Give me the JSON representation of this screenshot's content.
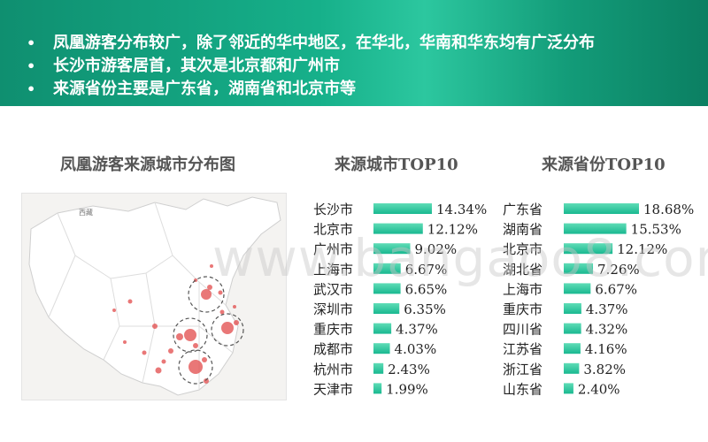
{
  "banner": {
    "bullets": [
      "凤凰游客分布较广，除了邻近的华中地区，在华北，华南和华东均有广泛分布",
      "长沙市游客居首，其次是北京都和广州市",
      "来源省份主要是广东省，湖南省和北京市等"
    ]
  },
  "map": {
    "title": "凤凰游客来源城市分布图",
    "label": "西藏",
    "colors": {
      "land": "#ffffff",
      "border": "#cfcfcf",
      "sea": "#f4f3f1",
      "dot": "#e24a4a"
    }
  },
  "watermark": "www.bangaoo8.com",
  "chart_data": [
    {
      "type": "bar",
      "orientation": "horizontal",
      "title": "来源城市TOP10",
      "categories": [
        "长沙市",
        "北京市",
        "广州市",
        "上海市",
        "武汉市",
        "深圳市",
        "重庆市",
        "成都市",
        "杭州市",
        "天津市"
      ],
      "values": [
        14.34,
        12.12,
        9.02,
        6.67,
        6.65,
        6.35,
        4.37,
        4.03,
        2.43,
        1.99
      ],
      "labels": [
        "14.34%",
        "12.12%",
        "9.02%",
        "6.67%",
        "6.65%",
        "6.35%",
        "4.37%",
        "4.03%",
        "2.43%",
        "1.99%"
      ],
      "color": "#19b890",
      "grid": false
    },
    {
      "type": "bar",
      "orientation": "horizontal",
      "title": "来源省份TOP10",
      "categories": [
        "广东省",
        "湖南省",
        "北京市",
        "湖北省",
        "上海市",
        "重庆市",
        "四川省",
        "江苏省",
        "浙江省",
        "山东省"
      ],
      "values": [
        18.68,
        15.53,
        12.12,
        7.26,
        6.67,
        4.37,
        4.32,
        4.16,
        3.82,
        2.4
      ],
      "labels": [
        "18.68%",
        "15.53%",
        "12.12%",
        "7.26%",
        "6.67%",
        "4.37%",
        "4.32%",
        "4.16%",
        "3.82%",
        "2.40%"
      ],
      "color": "#19b890",
      "grid": false
    }
  ]
}
